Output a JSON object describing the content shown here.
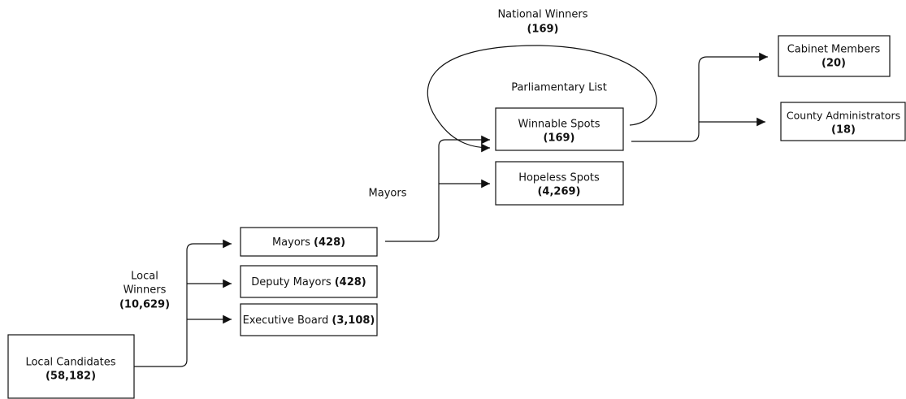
{
  "nodes": {
    "local_candidates": {
      "label": "Local Candidates",
      "count": "(58,182)"
    },
    "mayors": {
      "label": "Mayors",
      "count": "(428)"
    },
    "deputy_mayors": {
      "label": "Deputy Mayors",
      "count": "(428)"
    },
    "executive_board": {
      "label": "Executive Board",
      "count": "(3,108)"
    },
    "winnable_spots": {
      "label": "Winnable Spots",
      "count": "(169)"
    },
    "hopeless_spots": {
      "label": "Hopeless Spots",
      "count": "(4,269)"
    },
    "cabinet_members": {
      "label": "Cabinet Members",
      "count": "(20)"
    },
    "county_administrators": {
      "label": "County Administrators",
      "count": "(18)"
    }
  },
  "edge_labels": {
    "local_winners": {
      "line1": "Local",
      "line2": "Winners",
      "count": "(10,629)"
    },
    "mayors": "Mayors",
    "parliamentary_list": "Parliamentary List",
    "national_winners": {
      "label": "National Winners",
      "count": "(169)"
    }
  }
}
